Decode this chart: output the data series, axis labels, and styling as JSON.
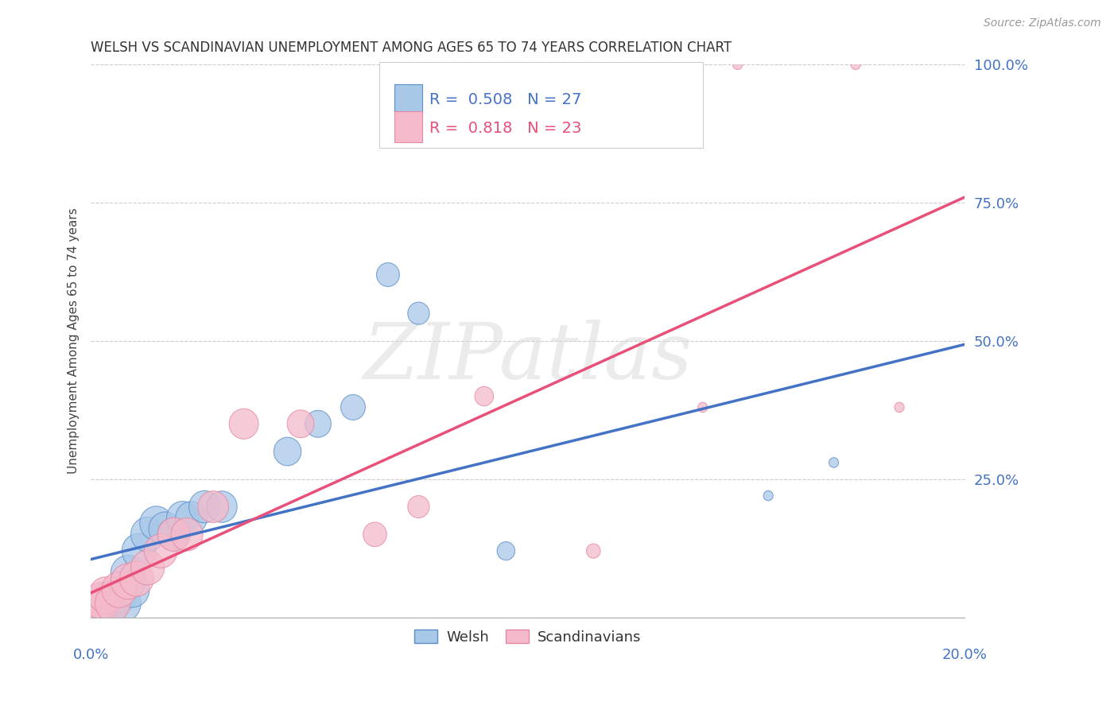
{
  "title": "WELSH VS SCANDINAVIAN UNEMPLOYMENT AMONG AGES 65 TO 74 YEARS CORRELATION CHART",
  "source": "Source: ZipAtlas.com",
  "ylabel": "Unemployment Among Ages 65 to 74 years",
  "xlim": [
    0.0,
    20.0
  ],
  "ylim": [
    0.0,
    100.0
  ],
  "yticks": [
    0.0,
    25.0,
    50.0,
    75.0,
    100.0
  ],
  "ytick_labels": [
    "",
    "25.0%",
    "50.0%",
    "75.0%",
    "100.0%"
  ],
  "welsh_R": "0.508",
  "welsh_N": "27",
  "scand_R": "0.818",
  "scand_N": "23",
  "welsh_color": "#A8C8E8",
  "welsh_edge_color": "#5B8EC8",
  "welsh_line_color": "#4472C4",
  "scand_color": "#F4BACB",
  "scand_edge_color": "#E888A0",
  "scand_line_color": "#E8507A",
  "legend_label_welsh": "Welsh",
  "legend_label_scand": "Scandinavians",
  "watermark": "ZIPatlas",
  "text_color": "#4472C4",
  "welsh_x": [
    0.05,
    0.15,
    0.25,
    0.35,
    0.45,
    0.55,
    0.65,
    0.75,
    0.85,
    0.95,
    1.1,
    1.3,
    1.5,
    1.7,
    1.9,
    2.1,
    2.3,
    2.6,
    3.0,
    4.5,
    5.2,
    6.0,
    6.8,
    7.5,
    9.5,
    15.5,
    17.0
  ],
  "welsh_y": [
    1.5,
    2.0,
    2.5,
    3.0,
    2.0,
    3.5,
    4.0,
    2.5,
    8.0,
    5.0,
    12.0,
    15.0,
    17.0,
    16.0,
    15.0,
    18.0,
    18.0,
    20.0,
    20.0,
    30.0,
    35.0,
    38.0,
    62.0,
    55.0,
    12.0,
    22.0,
    28.0
  ],
  "scand_x": [
    0.05,
    0.15,
    0.25,
    0.35,
    0.5,
    0.65,
    0.85,
    1.05,
    1.3,
    1.6,
    1.9,
    2.2,
    2.8,
    3.5,
    4.8,
    6.5,
    7.5,
    9.0,
    11.5,
    14.0,
    14.8,
    17.5,
    18.5
  ],
  "scand_y": [
    2.0,
    1.5,
    3.0,
    4.0,
    2.5,
    5.0,
    6.5,
    7.0,
    9.0,
    12.0,
    15.0,
    15.0,
    20.0,
    35.0,
    35.0,
    15.0,
    20.0,
    40.0,
    12.0,
    38.0,
    100.0,
    100.0,
    38.0
  ]
}
